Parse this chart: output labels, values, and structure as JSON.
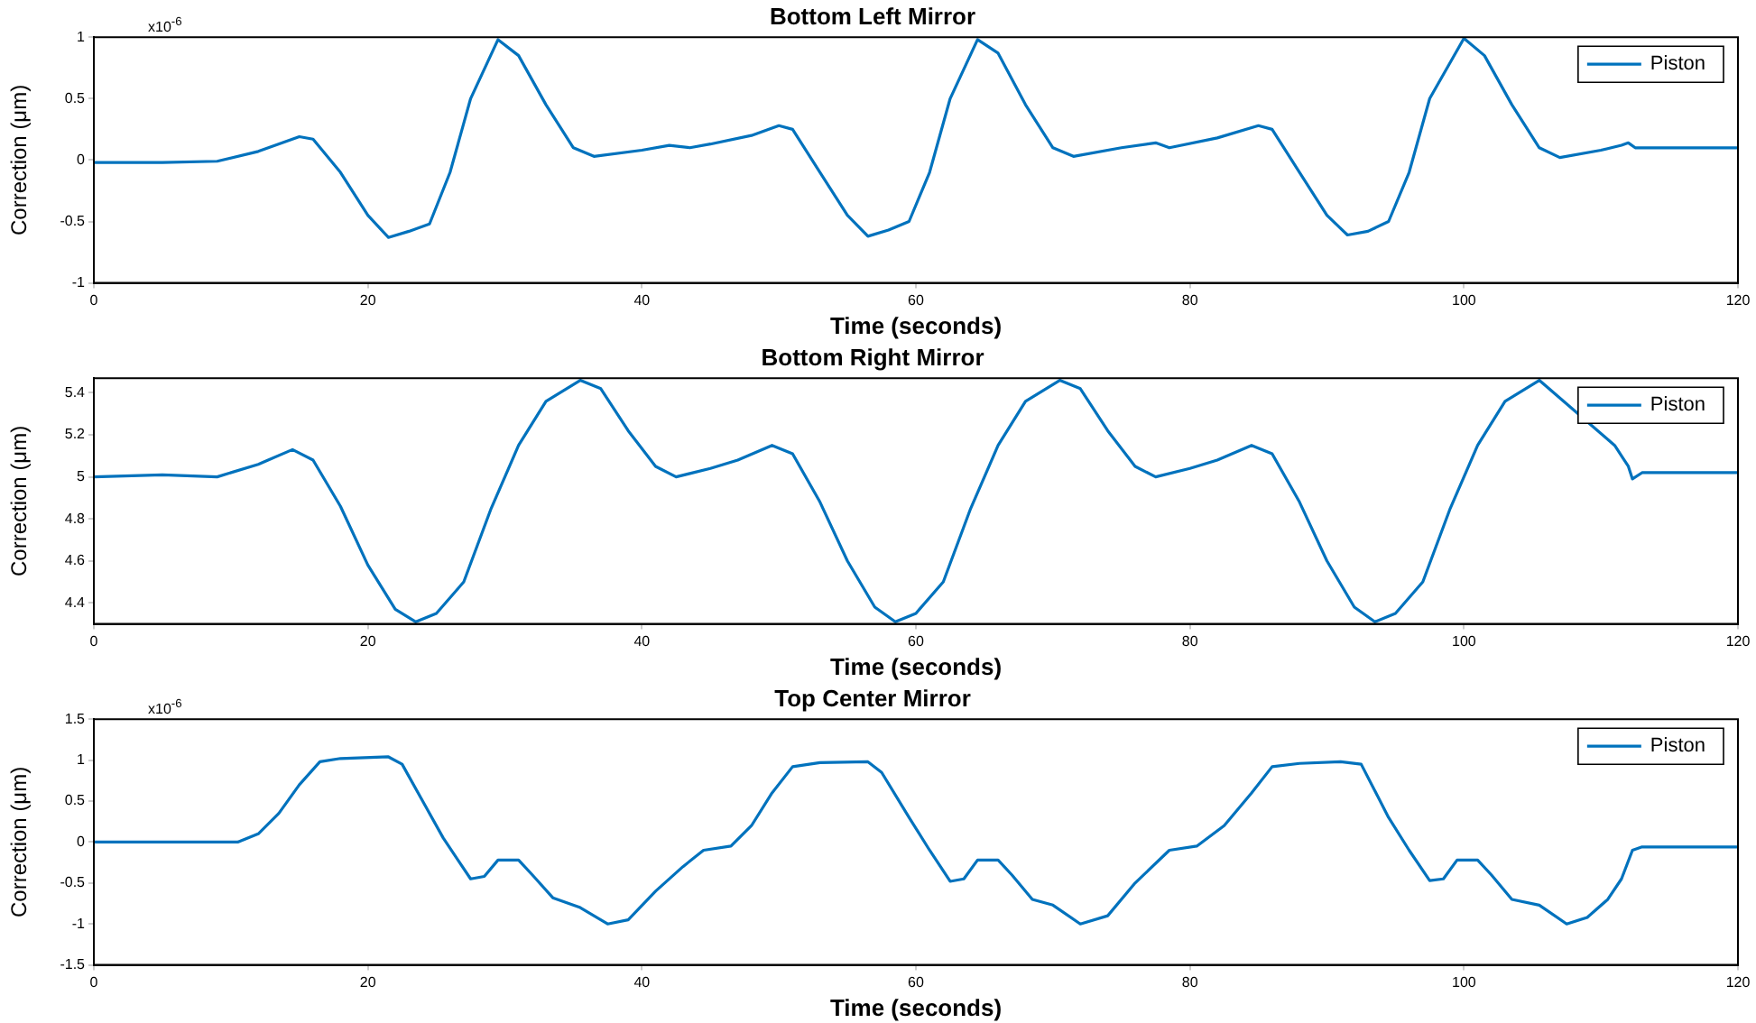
{
  "chart_data": [
    {
      "type": "line",
      "title": "Bottom Left Mirror",
      "xlabel": "Time (seconds)",
      "ylabel": "Correction (μm)",
      "annotations": [
        "x10$^{-6}$"
      ],
      "legend": "top right",
      "grid": false,
      "xlim": [
        0,
        120
      ],
      "xticks": [
        0,
        20,
        40,
        60,
        80,
        100,
        120
      ],
      "ylim": [
        -1,
        1
      ],
      "yticks": [
        -1,
        -0.5,
        0,
        0.5,
        1
      ],
      "series": [
        {
          "name": "Piston",
          "color": "#0072bd",
          "x": [
            0,
            5,
            9,
            12,
            15,
            16,
            18,
            20,
            21.5,
            23,
            24.5,
            26,
            27.5,
            29.5,
            31,
            33,
            35,
            36.5,
            40,
            42,
            43.5,
            45,
            48,
            50,
            51,
            53,
            55,
            56.5,
            58,
            59.5,
            61,
            62.5,
            64.5,
            66,
            68,
            70,
            71.5,
            75,
            77.5,
            78.5,
            82,
            85,
            86,
            88,
            90,
            91.5,
            93,
            94.5,
            96,
            97.5,
            100,
            101.5,
            103.5,
            105.5,
            107,
            110,
            111.5,
            112,
            112.5,
            120
          ],
          "values": [
            -0.02,
            -0.02,
            -0.01,
            0.07,
            0.19,
            0.17,
            -0.1,
            -0.45,
            -0.63,
            -0.58,
            -0.52,
            -0.1,
            0.5,
            0.98,
            0.85,
            0.45,
            0.1,
            0.03,
            0.08,
            0.12,
            0.1,
            0.13,
            0.2,
            0.28,
            0.25,
            -0.1,
            -0.45,
            -0.62,
            -0.57,
            -0.5,
            -0.1,
            0.5,
            0.98,
            0.87,
            0.45,
            0.1,
            0.03,
            0.1,
            0.14,
            0.1,
            0.18,
            0.28,
            0.25,
            -0.1,
            -0.45,
            -0.61,
            -0.58,
            -0.5,
            -0.1,
            0.5,
            0.99,
            0.85,
            0.45,
            0.1,
            0.02,
            0.08,
            0.12,
            0.14,
            0.1,
            0.1
          ]
        }
      ]
    },
    {
      "type": "line",
      "title": "Bottom Right Mirror",
      "xlabel": "Time (seconds)",
      "ylabel": "Correction (μm)",
      "legend": "top right",
      "grid": false,
      "xlim": [
        0,
        120
      ],
      "xticks": [
        0,
        20,
        40,
        60,
        80,
        100,
        120
      ],
      "ylim": [
        4.3,
        5.47
      ],
      "yticks": [
        4.4,
        4.6,
        4.8,
        5,
        5.2,
        5.4
      ],
      "series": [
        {
          "name": "Piston",
          "color": "#0072bd",
          "x": [
            0,
            5,
            9,
            12,
            14.5,
            16,
            18,
            20,
            22,
            23.5,
            25,
            27,
            29,
            31,
            33,
            35.5,
            37,
            39,
            41,
            42.5,
            45,
            47,
            49.5,
            51,
            53,
            55,
            57,
            58.5,
            60,
            62,
            64,
            66,
            68,
            70.5,
            72,
            74,
            76,
            77.5,
            80,
            82,
            84.5,
            86,
            88,
            90,
            92,
            93.5,
            95,
            97,
            99,
            101,
            103,
            105.5,
            111,
            112,
            112.3,
            113,
            120
          ],
          "values": [
            5.0,
            5.01,
            5.0,
            5.06,
            5.13,
            5.08,
            4.86,
            4.58,
            4.37,
            4.31,
            4.35,
            4.5,
            4.85,
            5.15,
            5.36,
            5.46,
            5.42,
            5.22,
            5.05,
            5.0,
            5.04,
            5.08,
            5.15,
            5.11,
            4.88,
            4.6,
            4.38,
            4.31,
            4.35,
            4.5,
            4.85,
            5.15,
            5.36,
            5.46,
            5.42,
            5.22,
            5.05,
            5.0,
            5.04,
            5.08,
            5.15,
            5.11,
            4.88,
            4.6,
            4.38,
            4.31,
            4.35,
            4.5,
            4.85,
            5.15,
            5.36,
            5.46,
            5.15,
            5.05,
            4.99,
            5.02,
            5.02
          ]
        }
      ]
    },
    {
      "type": "line",
      "title": "Top Center Mirror",
      "xlabel": "Time (seconds)",
      "ylabel": "Correction (μm)",
      "annotations": [
        "x10$^{-6}$"
      ],
      "legend": "top right",
      "grid": false,
      "xlim": [
        0,
        120
      ],
      "xticks": [
        0,
        20,
        40,
        60,
        80,
        100,
        120
      ],
      "ylim": [
        -1.5,
        1.5
      ],
      "yticks": [
        -1.5,
        -1,
        -0.5,
        0,
        0.5,
        1,
        1.5
      ],
      "series": [
        {
          "name": "Piston",
          "color": "#0072bd",
          "x": [
            0,
            10.5,
            12,
            13.5,
            15,
            16.5,
            18,
            21.5,
            22.5,
            24,
            25.5,
            27.5,
            28.5,
            29.5,
            31,
            32,
            33.5,
            35.5,
            37.5,
            39,
            41,
            43,
            44.5,
            46.5,
            48,
            49.5,
            51,
            53,
            56.5,
            57.5,
            59.5,
            61,
            62.5,
            63.5,
            64.5,
            66,
            67,
            68.5,
            70,
            72,
            74,
            76,
            78.5,
            80.5,
            82.5,
            84.5,
            86,
            88,
            91,
            92.5,
            94.5,
            96,
            97.5,
            98.5,
            99.5,
            101,
            102,
            103.5,
            105.5,
            107.5,
            109,
            110.5,
            111.5,
            112.3,
            113,
            120
          ],
          "values": [
            0,
            0,
            0.1,
            0.35,
            0.7,
            0.98,
            1.02,
            1.04,
            0.95,
            0.5,
            0.05,
            -0.45,
            -0.42,
            -0.22,
            -0.22,
            -0.4,
            -0.68,
            -0.8,
            -1.0,
            -0.95,
            -0.6,
            -0.3,
            -0.1,
            -0.05,
            0.2,
            0.6,
            0.92,
            0.97,
            0.98,
            0.85,
            0.3,
            -0.1,
            -0.48,
            -0.45,
            -0.22,
            -0.22,
            -0.4,
            -0.7,
            -0.77,
            -1.0,
            -0.9,
            -0.5,
            -0.1,
            -0.05,
            0.2,
            0.6,
            0.92,
            0.96,
            0.98,
            0.95,
            0.3,
            -0.1,
            -0.47,
            -0.45,
            -0.22,
            -0.22,
            -0.4,
            -0.7,
            -0.77,
            -1.0,
            -0.92,
            -0.7,
            -0.45,
            -0.1,
            -0.06,
            -0.06
          ]
        }
      ]
    }
  ]
}
